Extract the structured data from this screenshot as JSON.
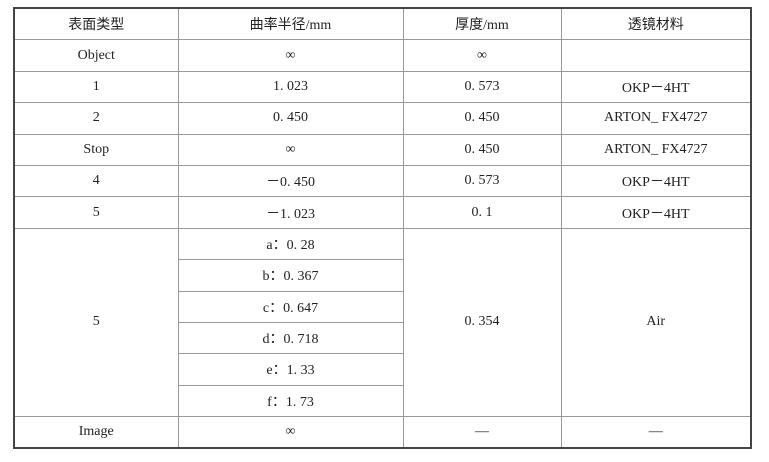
{
  "headers": [
    "表面类型",
    "曲率半径/mm",
    "厚度/mm",
    "透镜材料"
  ],
  "rows": [
    [
      "Object",
      "∞",
      "∞",
      ""
    ],
    [
      "1",
      "1. 023",
      "0. 573",
      "OKP－4HT"
    ],
    [
      "2",
      "0. 450",
      "0. 450",
      "ARTON_  FX4727"
    ],
    [
      "Stop",
      "∞",
      "0. 450",
      "ARTON_  FX4727"
    ],
    [
      "4",
      "－0. 450",
      "0. 573",
      "OKP－4HT"
    ],
    [
      "5",
      "－1. 023",
      "0. 1",
      "OKP－4HT"
    ]
  ],
  "merged_row": {
    "surface": "5",
    "radii": [
      "a：0. 28",
      "b：0. 367",
      "c：0. 647",
      "d：0. 718",
      "e：1. 33",
      "f：1. 73"
    ],
    "thickness": "0. 354",
    "material": "Air"
  },
  "last_row": [
    "Image",
    "∞",
    "—",
    "—"
  ]
}
